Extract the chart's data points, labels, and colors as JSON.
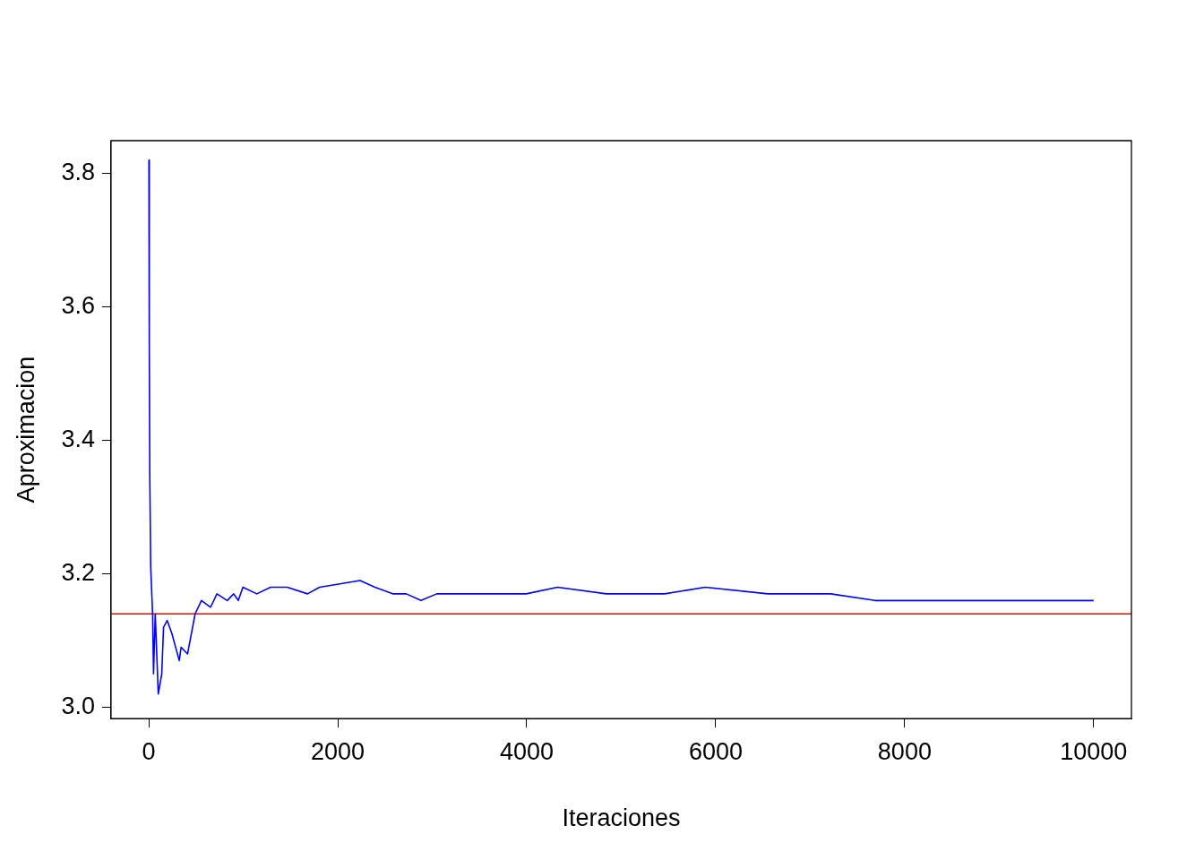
{
  "chart_data": {
    "type": "line",
    "xlabel": "Iteraciones",
    "ylabel": "Aproximacion",
    "xlim": [
      -400,
      10400
    ],
    "ylim": [
      2.983,
      3.849
    ],
    "xticks": [
      0,
      2000,
      4000,
      6000,
      8000,
      10000
    ],
    "yticks": [
      {
        "value": 3,
        "label": "3.0"
      },
      3.2,
      3.4,
      3.6,
      3.8
    ],
    "grid": false,
    "legend": false,
    "marker": "none",
    "line_style": "solid",
    "ref_lines": [
      {
        "axis": "y",
        "value": 3.14,
        "color": "#ff0000"
      }
    ],
    "series": [
      {
        "color": "#0000ff",
        "x": [
          1,
          5,
          10,
          20,
          40,
          50,
          68,
          100,
          137,
          156,
          195,
          245,
          322,
          342,
          410,
          490,
          557,
          654,
          721,
          830,
          898,
          947,
          996,
          1143,
          1289,
          1465,
          1680,
          1807,
          2236,
          2393,
          2588,
          2725,
          2881,
          3047,
          3418,
          3994,
          4326,
          4844,
          5459,
          5889,
          6553,
          7217,
          7686,
          8398,
          9111,
          9346,
          10000
        ],
        "values": [
          3.82,
          3.54,
          3.35,
          3.21,
          3.14,
          3.05,
          3.14,
          3.02,
          3.05,
          3.12,
          3.13,
          3.11,
          3.07,
          3.09,
          3.08,
          3.14,
          3.16,
          3.15,
          3.17,
          3.16,
          3.17,
          3.16,
          3.18,
          3.17,
          3.18,
          3.18,
          3.17,
          3.18,
          3.19,
          3.18,
          3.17,
          3.17,
          3.16,
          3.17,
          3.17,
          3.17,
          3.18,
          3.17,
          3.17,
          3.18,
          3.17,
          3.17,
          3.16,
          3.16,
          3.16,
          3.16,
          3.16
        ]
      }
    ]
  }
}
